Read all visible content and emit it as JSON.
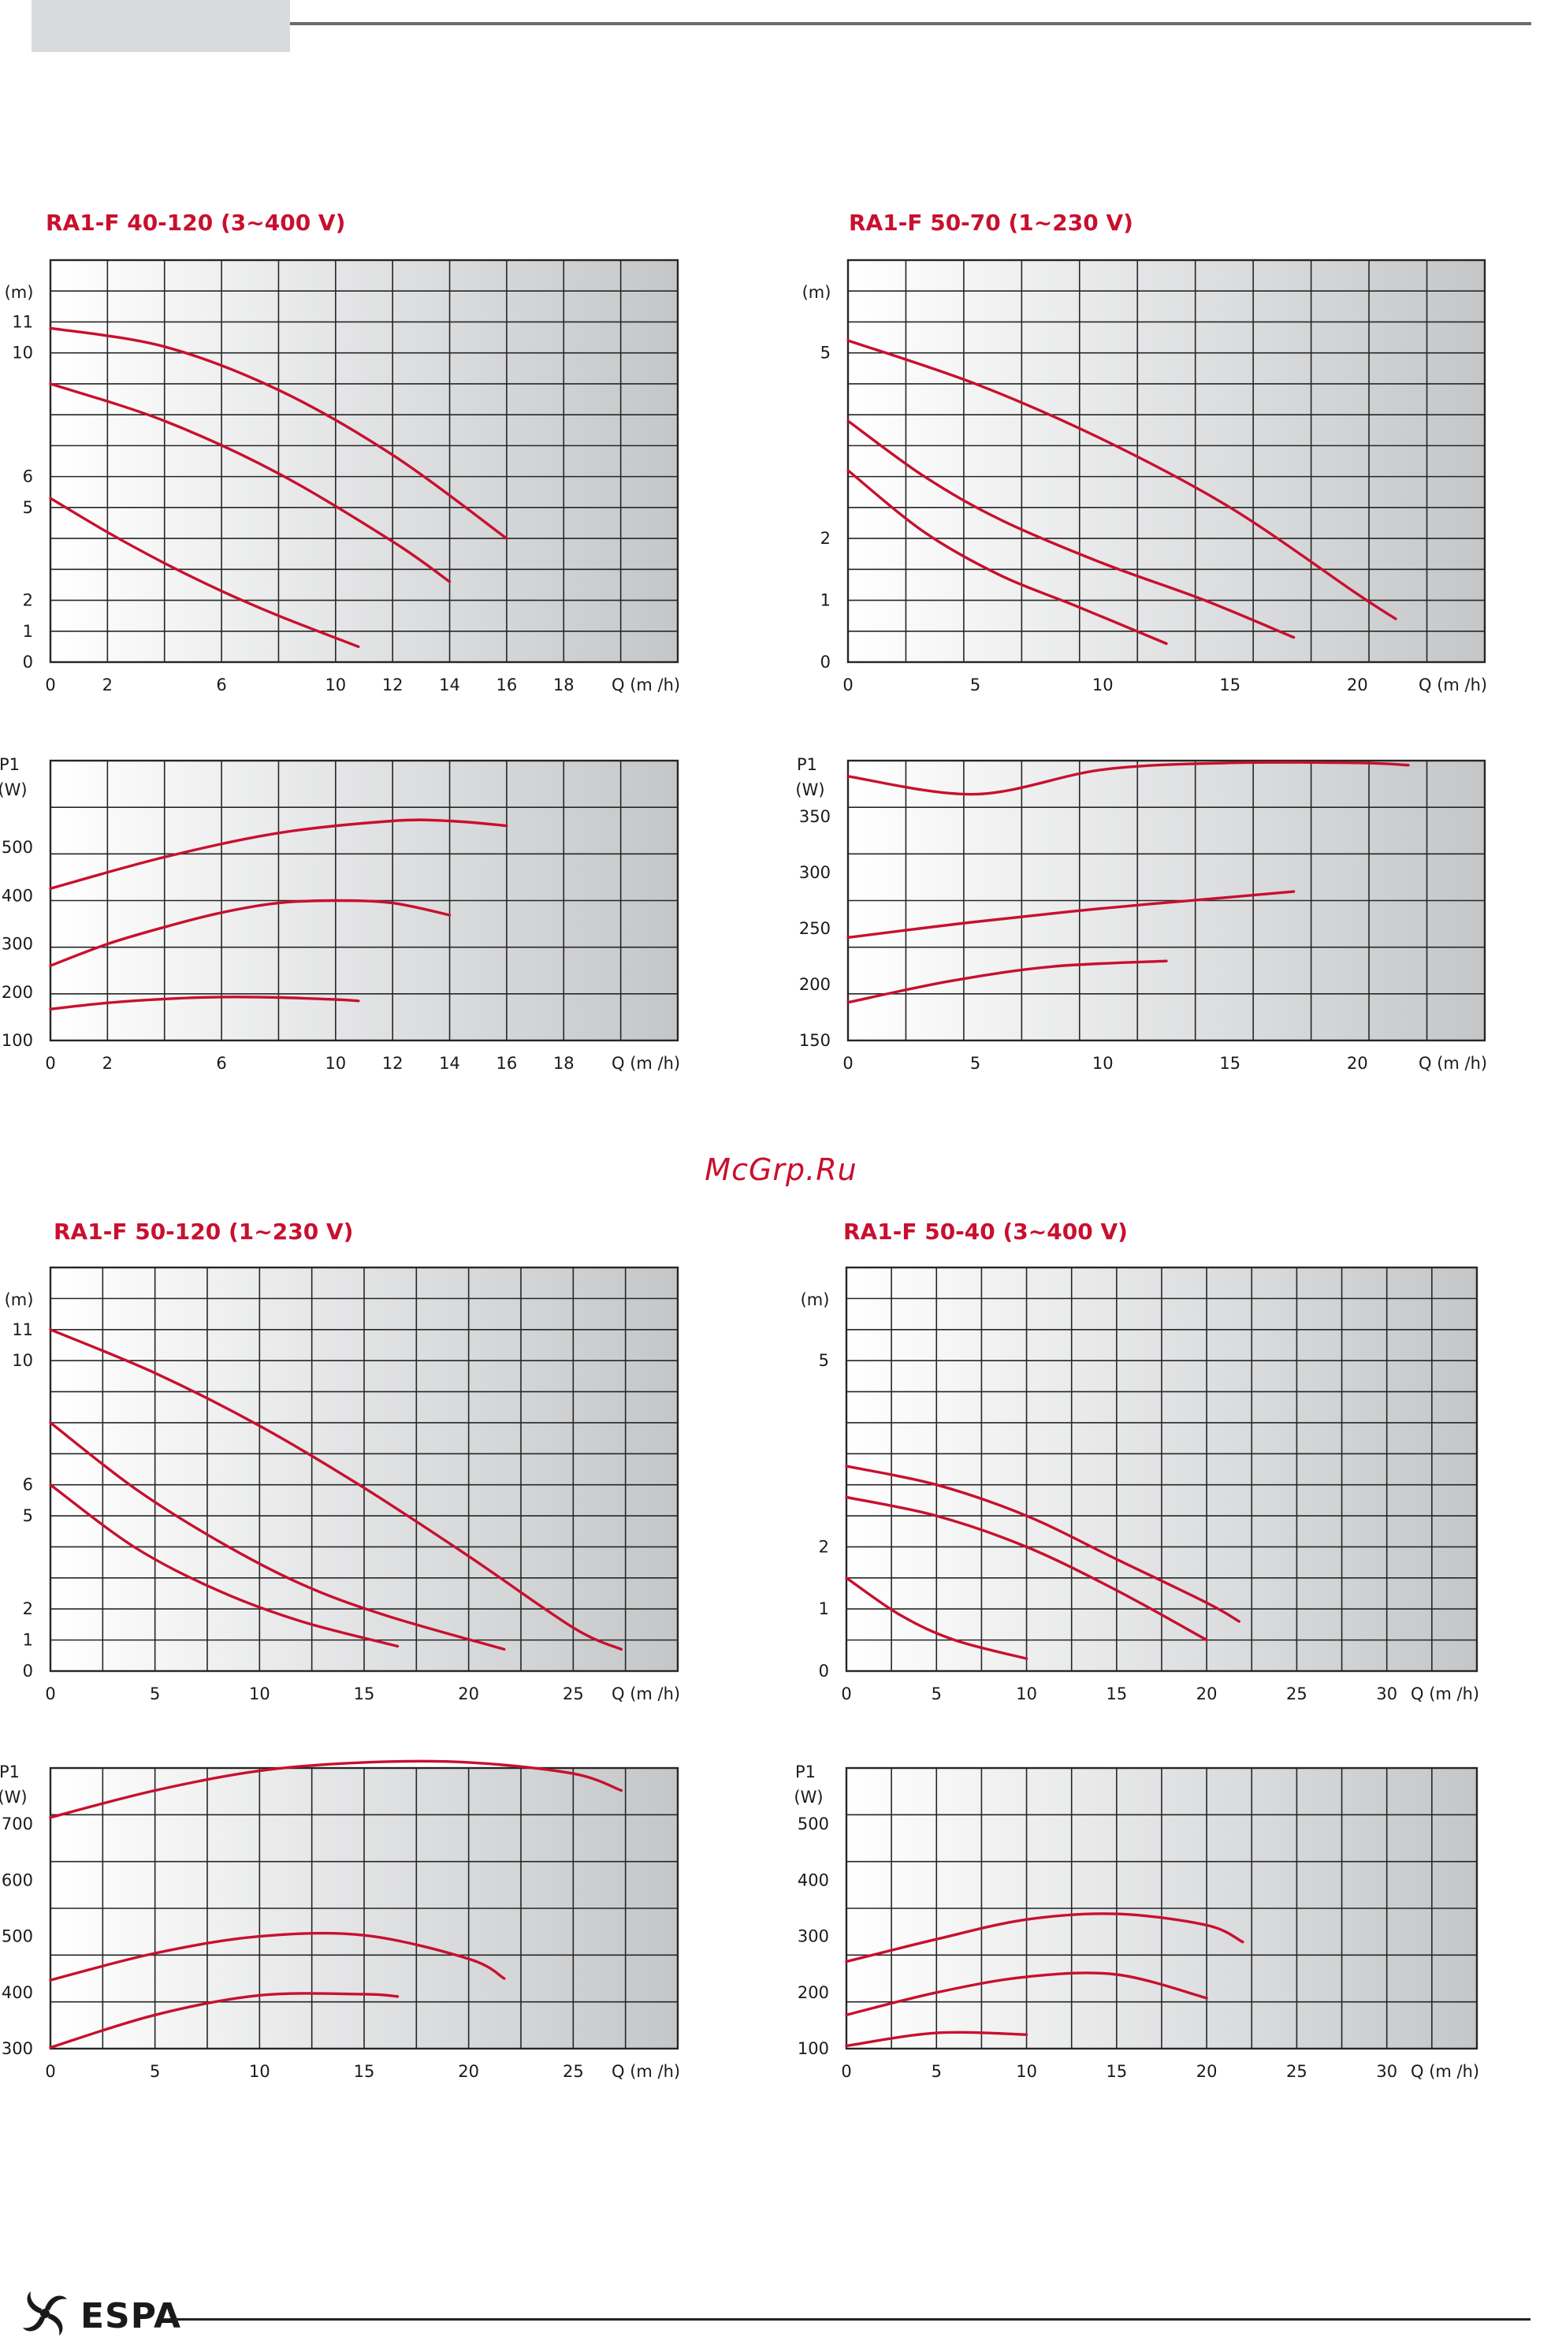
{
  "watermark": "McGrp.Ru",
  "logo_text": "ESPA",
  "colors": {
    "curve": "#c8102e",
    "title": "#c8102e",
    "grid": "#262626",
    "axis_text": "#1a1a1a"
  },
  "chart_data": [
    {
      "type": "line",
      "title": "RA1-F 40-120 (3~400 V)",
      "ylabel": "(m)",
      "xlabel": "Q (m /h)",
      "xlim": [
        0,
        22
      ],
      "ylim": [
        0,
        13
      ],
      "xticks": [
        0,
        2,
        6,
        10,
        12,
        14,
        16,
        18
      ],
      "yticks": [
        0,
        1,
        2,
        5,
        6,
        10,
        11
      ],
      "series": [
        {
          "x": [
            0,
            4,
            8,
            12,
            16
          ],
          "y": [
            10.8,
            10.2,
            8.8,
            6.7,
            4.0
          ]
        },
        {
          "x": [
            0,
            4,
            8,
            12,
            14
          ],
          "y": [
            9.0,
            7.8,
            6.1,
            3.9,
            2.6
          ]
        },
        {
          "x": [
            0,
            2,
            4,
            6,
            8,
            10.8
          ],
          "y": [
            5.3,
            4.2,
            3.2,
            2.3,
            1.5,
            0.5
          ]
        }
      ]
    },
    {
      "type": "line",
      "ylabel": "P1 (W)",
      "xlabel": "Q (m /h)",
      "xlim": [
        0,
        22
      ],
      "ylim": [
        100,
        680
      ],
      "xticks": [
        0,
        2,
        6,
        10,
        12,
        14,
        16,
        18
      ],
      "yticks": [
        100,
        200,
        300,
        400,
        500
      ],
      "series": [
        {
          "x": [
            0,
            4,
            8,
            12,
            14,
            16
          ],
          "y": [
            415,
            480,
            530,
            555,
            555,
            545
          ]
        },
        {
          "x": [
            0,
            2,
            4,
            6,
            8,
            10,
            12,
            14
          ],
          "y": [
            255,
            300,
            335,
            365,
            385,
            390,
            385,
            360
          ]
        },
        {
          "x": [
            0,
            2,
            4,
            6,
            8,
            10,
            10.8
          ],
          "y": [
            165,
            178,
            186,
            190,
            189,
            185,
            182
          ]
        }
      ]
    },
    {
      "type": "line",
      "title": "RA1-F 50-70 (1~230 V)",
      "ylabel": "(m)",
      "xlabel": "Q (m /h)",
      "xlim": [
        0,
        25
      ],
      "ylim": [
        0,
        6.5
      ],
      "xticks": [
        0,
        5,
        10,
        15,
        20
      ],
      "yticks": [
        0,
        1,
        2,
        5
      ],
      "series": [
        {
          "x": [
            0,
            5,
            10,
            15,
            20,
            21.5
          ],
          "y": [
            5.2,
            4.5,
            3.6,
            2.5,
            1.1,
            0.7
          ]
        },
        {
          "x": [
            0,
            3,
            6,
            10,
            14,
            17.5
          ],
          "y": [
            3.9,
            3.0,
            2.3,
            1.6,
            1.0,
            0.4
          ]
        },
        {
          "x": [
            0,
            3,
            6,
            9,
            12.5
          ],
          "y": [
            3.1,
            2.1,
            1.4,
            0.9,
            0.3
          ]
        }
      ]
    },
    {
      "type": "line",
      "ylabel": "P1 (W)",
      "xlabel": "Q (m /h)",
      "xlim": [
        0,
        25
      ],
      "ylim": [
        150,
        400
      ],
      "xticks": [
        0,
        5,
        10,
        15,
        20
      ],
      "yticks": [
        150,
        200,
        250,
        300,
        350
      ],
      "series": [
        {
          "x": [
            0,
            5,
            10,
            15,
            20,
            22
          ],
          "y": [
            386,
            370,
            392,
            398,
            398,
            396
          ]
        },
        {
          "x": [
            0,
            5,
            10,
            15,
            17.5
          ],
          "y": [
            242,
            256,
            268,
            278,
            283
          ]
        },
        {
          "x": [
            0,
            4,
            8,
            12.5
          ],
          "y": [
            184,
            203,
            216,
            221
          ]
        }
      ]
    },
    {
      "type": "line",
      "title": "RA1-F 50-120 (1~230 V)",
      "ylabel": "(m)",
      "xlabel": "Q (m /h)",
      "xlim": [
        0,
        30
      ],
      "ylim": [
        0,
        13
      ],
      "xticks": [
        0,
        5,
        10,
        15,
        20,
        25
      ],
      "yticks": [
        0,
        1,
        2,
        5,
        6,
        10,
        11
      ],
      "series": [
        {
          "x": [
            0,
            5,
            10,
            15,
            20,
            25,
            27.3
          ],
          "y": [
            11.0,
            9.6,
            7.9,
            5.9,
            3.7,
            1.4,
            0.7
          ]
        },
        {
          "x": [
            0,
            4,
            8,
            12,
            16,
            21.7
          ],
          "y": [
            8.0,
            5.9,
            4.2,
            2.8,
            1.8,
            0.7
          ]
        },
        {
          "x": [
            0,
            4,
            8,
            12,
            16.6
          ],
          "y": [
            6.0,
            4.0,
            2.6,
            1.6,
            0.8
          ]
        }
      ]
    },
    {
      "type": "line",
      "ylabel": "P1 (W)",
      "xlabel": "Q (m /h)",
      "xlim": [
        0,
        30
      ],
      "ylim": [
        300,
        800
      ],
      "xticks": [
        0,
        5,
        10,
        15,
        20,
        25
      ],
      "yticks": [
        300,
        400,
        500,
        600,
        700
      ],
      "series": [
        {
          "x": [
            0,
            5,
            10,
            15,
            20,
            25,
            27.3
          ],
          "y": [
            712,
            760,
            795,
            810,
            810,
            790,
            760
          ]
        },
        {
          "x": [
            0,
            5,
            10,
            15,
            20,
            21.7
          ],
          "y": [
            422,
            470,
            500,
            502,
            460,
            425
          ]
        },
        {
          "x": [
            0,
            5,
            10,
            15,
            16.6
          ],
          "y": [
            302,
            360,
            395,
            397,
            393
          ]
        }
      ]
    },
    {
      "type": "line",
      "title": "RA1-F 50-40 (3~400 V)",
      "ylabel": "(m)",
      "xlabel": "Q (m /h)",
      "xlim": [
        0,
        35
      ],
      "ylim": [
        0,
        6.5
      ],
      "xticks": [
        0,
        5,
        10,
        15,
        20,
        25,
        30
      ],
      "yticks": [
        0,
        1,
        2,
        5
      ],
      "series": [
        {
          "x": [
            0,
            5,
            10,
            15,
            20,
            21.8
          ],
          "y": [
            3.3,
            3.0,
            2.5,
            1.8,
            1.1,
            0.8
          ]
        },
        {
          "x": [
            0,
            5,
            10,
            15,
            20
          ],
          "y": [
            2.8,
            2.5,
            2.0,
            1.3,
            0.5
          ]
        },
        {
          "x": [
            0,
            3,
            6,
            10
          ],
          "y": [
            1.5,
            0.9,
            0.5,
            0.2
          ]
        }
      ]
    },
    {
      "type": "line",
      "ylabel": "P1 (W)",
      "xlabel": "Q (m /h)",
      "xlim": [
        0,
        35
      ],
      "ylim": [
        100,
        600
      ],
      "xticks": [
        0,
        5,
        10,
        15,
        20,
        25,
        30
      ],
      "yticks": [
        100,
        200,
        300,
        400,
        500
      ],
      "series": [
        {
          "x": [
            0,
            5,
            10,
            15,
            20,
            22
          ],
          "y": [
            255,
            295,
            330,
            340,
            320,
            290
          ]
        },
        {
          "x": [
            0,
            5,
            10,
            15,
            20
          ],
          "y": [
            160,
            200,
            228,
            232,
            190
          ]
        },
        {
          "x": [
            0,
            5,
            10
          ],
          "y": [
            105,
            128,
            125
          ]
        }
      ]
    }
  ]
}
